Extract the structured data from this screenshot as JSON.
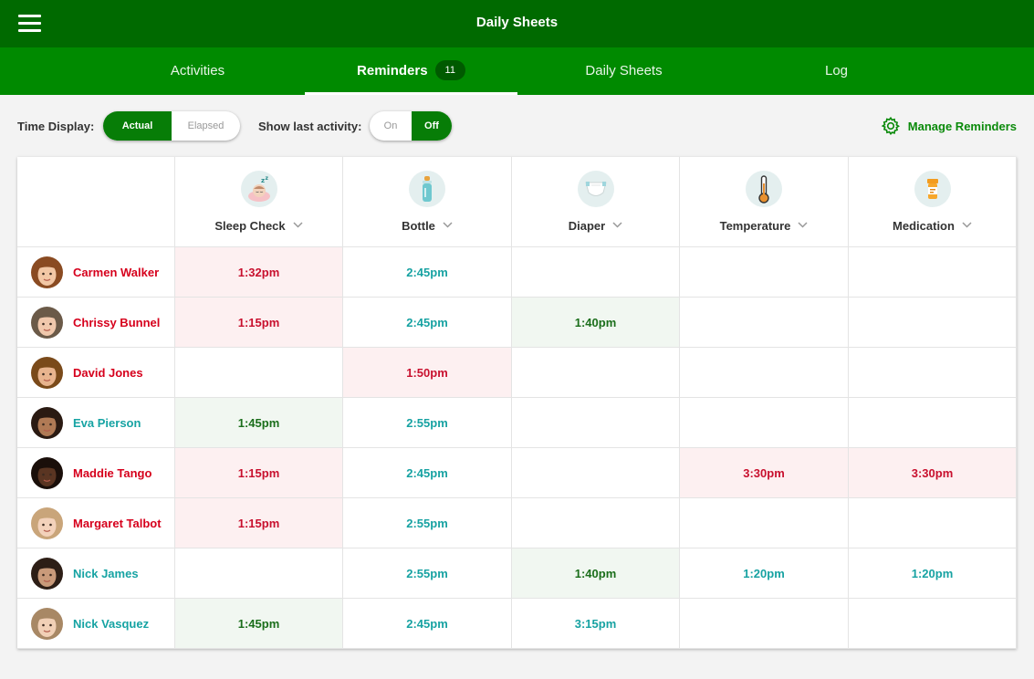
{
  "app": {
    "title": "Daily Sheets"
  },
  "tabs": [
    {
      "label": "Activities",
      "active": false
    },
    {
      "label": "Reminders",
      "active": true,
      "badge": "11"
    },
    {
      "label": "Daily Sheets",
      "active": false
    },
    {
      "label": "Log",
      "active": false
    }
  ],
  "controls": {
    "time_display_label": "Time Display:",
    "time_display_options": [
      "Actual",
      "Elapsed"
    ],
    "time_display_selected": "Actual",
    "last_activity_label": "Show last activity:",
    "last_activity_options": [
      "On",
      "Off"
    ],
    "last_activity_selected": "Off",
    "manage_label": "Manage Reminders"
  },
  "columns": [
    {
      "label": "Sleep Check",
      "icon": "sleep-icon"
    },
    {
      "label": "Bottle",
      "icon": "bottle-icon"
    },
    {
      "label": "Diaper",
      "icon": "diaper-icon"
    },
    {
      "label": "Temperature",
      "icon": "thermometer-icon"
    },
    {
      "label": "Medication",
      "icon": "medication-icon"
    }
  ],
  "colors": {
    "primary_dark": "#006a00",
    "primary": "#008a00",
    "overdue_text": "#c8102e",
    "overdue_bg": "#fdf0f1",
    "done_text": "#1b6e1b",
    "done_bg": "#f1f7f1",
    "upcoming_text": "#17a2a2"
  },
  "children": [
    {
      "name": "Carmen Walker",
      "status": "overdue",
      "skin": "#f2c7a5",
      "hair": "#8a4b22",
      "times": [
        {
          "t": "1:32pm",
          "s": "red"
        },
        {
          "t": "2:45pm",
          "s": "teal"
        },
        null,
        null,
        null
      ]
    },
    {
      "name": "Chrissy Bunnel",
      "status": "overdue",
      "skin": "#f0c8ac",
      "hair": "#6b5a48",
      "times": [
        {
          "t": "1:15pm",
          "s": "red"
        },
        {
          "t": "2:45pm",
          "s": "teal"
        },
        {
          "t": "1:40pm",
          "s": "green"
        },
        null,
        null
      ]
    },
    {
      "name": "David Jones",
      "status": "overdue",
      "skin": "#e8b48e",
      "hair": "#7a4a1a",
      "times": [
        null,
        {
          "t": "1:50pm",
          "s": "red"
        },
        null,
        null,
        null
      ]
    },
    {
      "name": "Eva Pierson",
      "status": "ok",
      "skin": "#b07a55",
      "hair": "#2a1a12",
      "times": [
        {
          "t": "1:45pm",
          "s": "green"
        },
        {
          "t": "2:55pm",
          "s": "teal"
        },
        null,
        null,
        null
      ]
    },
    {
      "name": "Maddie Tango",
      "status": "overdue",
      "skin": "#5a3522",
      "hair": "#1a0f0a",
      "times": [
        {
          "t": "1:15pm",
          "s": "red"
        },
        {
          "t": "2:45pm",
          "s": "teal"
        },
        null,
        {
          "t": "3:30pm",
          "s": "red"
        },
        {
          "t": "3:30pm",
          "s": "red"
        }
      ]
    },
    {
      "name": "Margaret Talbot",
      "status": "overdue",
      "skin": "#f3d2bb",
      "hair": "#c9a57a",
      "times": [
        {
          "t": "1:15pm",
          "s": "red"
        },
        {
          "t": "2:55pm",
          "s": "teal"
        },
        null,
        null,
        null
      ]
    },
    {
      "name": "Nick James",
      "status": "ok",
      "skin": "#c99a7a",
      "hair": "#2d1e16",
      "times": [
        null,
        {
          "t": "2:55pm",
          "s": "teal"
        },
        {
          "t": "1:40pm",
          "s": "green"
        },
        {
          "t": "1:20pm",
          "s": "teal"
        },
        {
          "t": "1:20pm",
          "s": "teal"
        }
      ]
    },
    {
      "name": "Nick Vasquez",
      "status": "ok",
      "skin": "#f1d0b6",
      "hair": "#a88865",
      "times": [
        {
          "t": "1:45pm",
          "s": "green"
        },
        {
          "t": "2:45pm",
          "s": "teal"
        },
        {
          "t": "3:15pm",
          "s": "teal"
        },
        null,
        null
      ]
    }
  ]
}
